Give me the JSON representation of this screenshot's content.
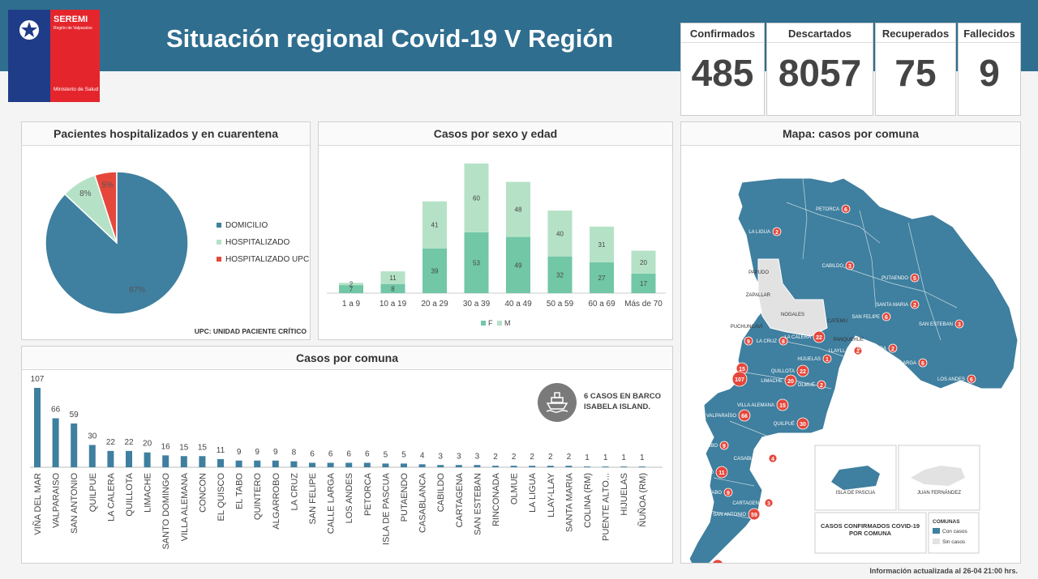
{
  "header": {
    "title": "Situación regional Covid-19 V Región",
    "logo_title": "SEREMI",
    "logo_subtitle": "Región de Valparaíso",
    "logo_bottom": "Ministerio de Salud"
  },
  "stats": [
    {
      "label": "Confirmados",
      "value": "485"
    },
    {
      "label": "Descartados",
      "value": "8057"
    },
    {
      "label": "Recuperados",
      "value": "75"
    },
    {
      "label": "Fallecidos",
      "value": "9"
    }
  ],
  "colors": {
    "primary": "#3f7f9f",
    "light_green": "#b5e2c6",
    "green": "#71c7a6",
    "red": "#e5483b",
    "header": "#2f6e8f"
  },
  "panels": {
    "pie_title": "Pacientes hospitalizados  y en cuarentena",
    "sex_age_title": "Casos por sexo y edad",
    "map_title": "Mapa: casos por comuna",
    "comuna_title": "Casos por comuna",
    "upc_note": "UPC: UNIDAD PACIENTE CRÍTICO"
  },
  "boat_note": {
    "text1": "6 CASOS EN BARCO",
    "text2": "ISABELA ISLAND.",
    "icon": "ship-icon"
  },
  "map_legend": {
    "title": "CASOS CONFIRMADOS COVID-19 POR COMUNA",
    "comunas_label": "COMUNAS",
    "con": "Con casos",
    "sin": "Sin casos",
    "isla": "ISLA DE PASCUA",
    "juan": "JUAN FERNÁNDEZ"
  },
  "footer": "Información  actualizada al 26-04 21:00 hrs.",
  "chart_data": [
    {
      "type": "pie",
      "title": "Pacientes hospitalizados  y en cuarentena",
      "slices": [
        {
          "name": "DOMICILIO",
          "value": 87,
          "label": "87%",
          "color": "#3f7f9f"
        },
        {
          "name": "HOSPITALIZADO",
          "value": 8,
          "label": "8%",
          "color": "#b5e2c6"
        },
        {
          "name": "HOSPITALIZADO UPC",
          "value": 5,
          "label": "5%",
          "color": "#e5483b"
        }
      ]
    },
    {
      "type": "bar",
      "title": "Casos por sexo y edad",
      "stacked": true,
      "categories": [
        "1 a 9",
        "10 a 19",
        "20 a 29",
        "30 a 39",
        "40 a 49",
        "50 a 59",
        "60 a 69",
        "Más de 70"
      ],
      "series": [
        {
          "name": "F",
          "values": [
            7,
            8,
            39,
            53,
            49,
            32,
            27,
            17
          ],
          "color": "#71c7a6"
        },
        {
          "name": "M",
          "values": [
            2,
            11,
            41,
            60,
            48,
            40,
            31,
            20
          ],
          "color": "#b5e2c6"
        }
      ]
    },
    {
      "type": "bar",
      "title": "Casos por comuna",
      "categories": [
        "VIÑA DEL MAR",
        "VALPARAISO",
        "SAN ANTONIO",
        "QUILPUE",
        "LA CALERA",
        "QUILLOTA",
        "LIMACHE",
        "SANTO DOMINGO",
        "VILLA ALEMANA",
        "CONCON",
        "EL QUISCO",
        "EL TABO",
        "QUINTERO",
        "ALGARROBO",
        "LA CRUZ",
        "SAN FELIPE",
        "CALLE LARGA",
        "LOS ANDES",
        "PETORCA",
        "ISLA DE PASCUA",
        "PUTAENDO",
        "CASABLANCA",
        "CABILDO",
        "CARTAGENA",
        "SAN ESTEBAN",
        "RINCONADA",
        "OLMUE",
        "LA LIGUA",
        "LLAY-LLAY",
        "SANTA MARIA",
        "COLINA (RM)",
        "PUENTE ALTO...",
        "HIJUELAS",
        "ÑUÑOA (RM)"
      ],
      "values": [
        107,
        66,
        59,
        30,
        22,
        22,
        20,
        16,
        15,
        15,
        11,
        9,
        9,
        9,
        8,
        6,
        6,
        6,
        6,
        5,
        5,
        4,
        3,
        3,
        3,
        2,
        2,
        2,
        2,
        2,
        1,
        1,
        1,
        1
      ],
      "color": "#3f7f9f"
    }
  ],
  "map_labels": [
    {
      "name": "PETORCA",
      "n": "6"
    },
    {
      "name": "LA LIGUA",
      "n": "2"
    },
    {
      "name": "CABILDO",
      "n": "3"
    },
    {
      "name": "PUTAENDO",
      "n": "5"
    },
    {
      "name": "PAPUDO",
      "n": ""
    },
    {
      "name": "ZAPALLAR",
      "n": ""
    },
    {
      "name": "NOGALES",
      "n": ""
    },
    {
      "name": "CATEMU",
      "n": ""
    },
    {
      "name": "SAN FELIPE",
      "n": "6"
    },
    {
      "name": "SANTA MARIA",
      "n": "2"
    },
    {
      "name": "SAN ESTEBAN",
      "n": "3"
    },
    {
      "name": "PUCHUNCAVÍ",
      "n": ""
    },
    {
      "name": "QUINTERO",
      "n": "9"
    },
    {
      "name": "LA CRUZ",
      "n": "8"
    },
    {
      "name": "LA CALERA",
      "n": "22"
    },
    {
      "name": "HIJUELAS",
      "n": "1"
    },
    {
      "name": "LLAYLLAY",
      "n": "2"
    },
    {
      "name": "PANQUEHUE",
      "n": ""
    },
    {
      "name": "RINCONADA",
      "n": "2"
    },
    {
      "name": "CALLE LARGA",
      "n": "6"
    },
    {
      "name": "LOS ANDES",
      "n": "6"
    },
    {
      "name": "CONCÓN",
      "n": "15"
    },
    {
      "name": "VIÑA DEL MAR",
      "n": "107"
    },
    {
      "name": "QUILLOTA",
      "n": "22"
    },
    {
      "name": "LIMACHE",
      "n": "20"
    },
    {
      "name": "OLMUÉ",
      "n": "2"
    },
    {
      "name": "VILLA ALEMANA",
      "n": "15"
    },
    {
      "name": "VALPARAÍSO",
      "n": "66"
    },
    {
      "name": "QUILPUÉ",
      "n": "30"
    },
    {
      "name": "ALGARROBO",
      "n": "9"
    },
    {
      "name": "CASABLANCA",
      "n": "4"
    },
    {
      "name": "EL QUISCO",
      "n": "11"
    },
    {
      "name": "EL TABO",
      "n": "9"
    },
    {
      "name": "CARTAGENA",
      "n": "3"
    },
    {
      "name": "SAN ANTONIO",
      "n": "59"
    },
    {
      "name": "SANTO DOMINGO",
      "n": "16"
    }
  ]
}
